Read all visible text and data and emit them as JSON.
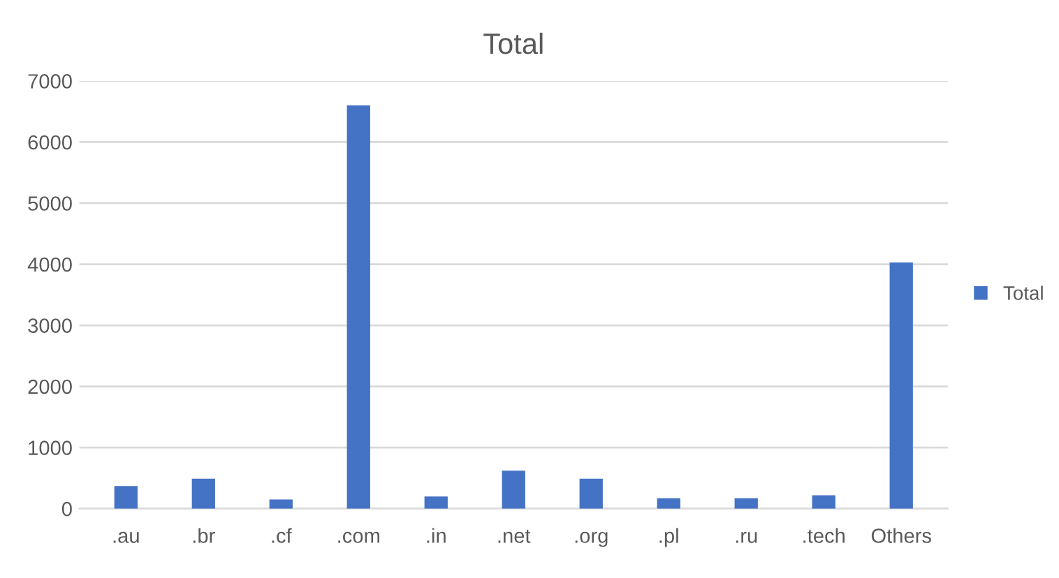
{
  "chart_data": {
    "type": "bar",
    "title": "Total",
    "categories": [
      ".au",
      ".br",
      ".cf",
      ".com",
      ".in",
      ".net",
      ".org",
      ".pl",
      ".ru",
      ".tech",
      "Others"
    ],
    "series": [
      {
        "name": "Total",
        "color": "#4472c4",
        "values": [
          370,
          490,
          150,
          6600,
          200,
          620,
          490,
          170,
          170,
          220,
          4030
        ]
      }
    ],
    "ylim": [
      0,
      7000
    ],
    "yticks": [
      0,
      1000,
      2000,
      3000,
      4000,
      5000,
      6000,
      7000
    ],
    "grid": "y",
    "legend": "right"
  }
}
